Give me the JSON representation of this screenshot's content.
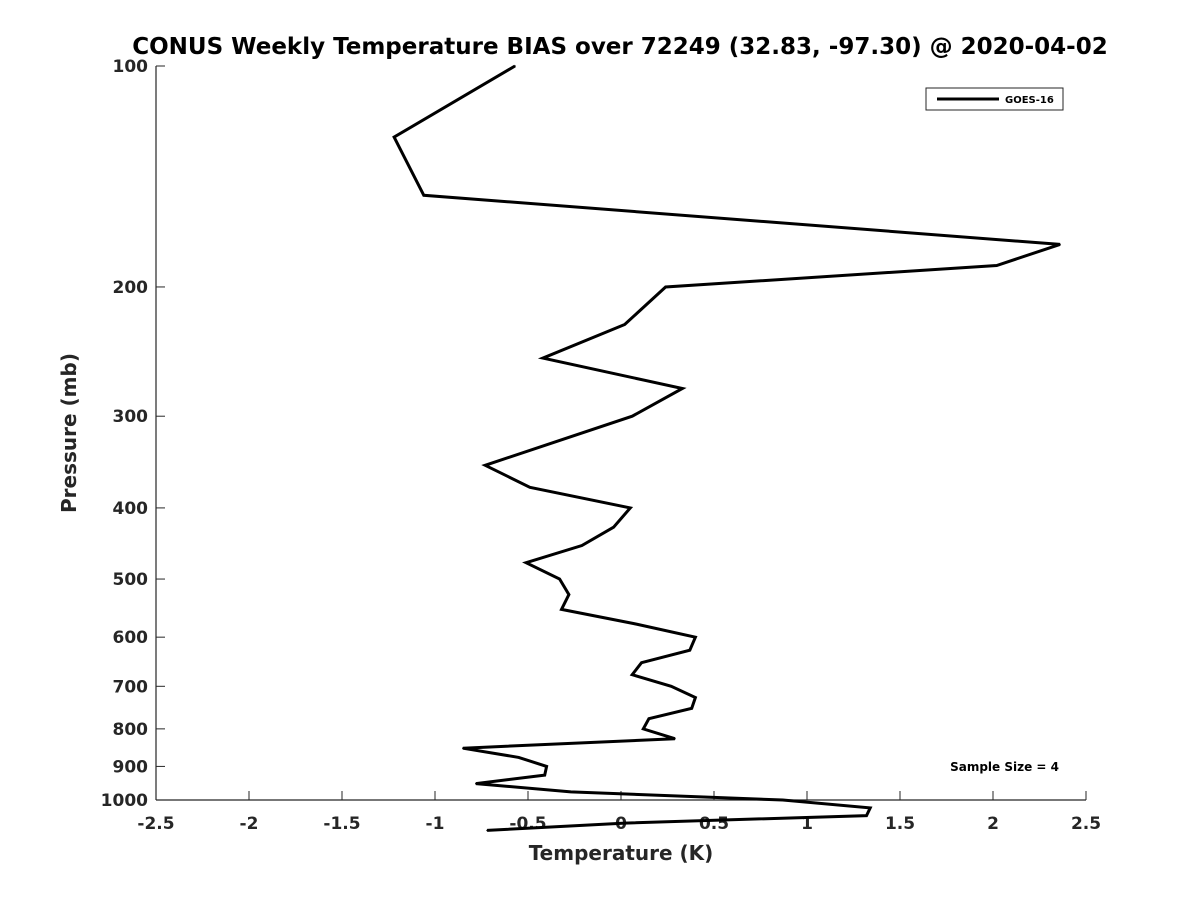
{
  "chart_data": {
    "type": "line",
    "title": "CONUS Weekly Temperature BIAS over 72249 (32.83, -97.30) @ 2020-04-02",
    "xlabel": "Temperature (K)",
    "ylabel": "Pressure (mb)",
    "xlim": [
      -2.5,
      2.5
    ],
    "ylim": [
      1000,
      100
    ],
    "yscale": "log",
    "x_ticks": [
      "-2.5",
      "-2",
      "-1.5",
      "-1",
      "-0.5",
      "0",
      "0.5",
      "1",
      "1.5",
      "2",
      "2.5"
    ],
    "x_tick_values": [
      -2.5,
      -2,
      -1.5,
      -1,
      -0.5,
      0,
      0.5,
      1,
      1.5,
      2,
      2.5
    ],
    "y_ticks": [
      "100",
      "200",
      "300",
      "400",
      "500",
      "600",
      "700",
      "800",
      "900",
      "1000"
    ],
    "y_tick_values": [
      100,
      200,
      300,
      400,
      500,
      600,
      700,
      800,
      900,
      1000
    ],
    "grid": false,
    "legend_position": "top-right",
    "series": [
      {
        "name": "GOES-16",
        "color": "#000000",
        "points": [
          {
            "x": -0.57,
            "p": 100
          },
          {
            "x": -1.22,
            "p": 125
          },
          {
            "x": -1.06,
            "p": 150
          },
          {
            "x": 2.36,
            "p": 175
          },
          {
            "x": 2.02,
            "p": 187
          },
          {
            "x": 0.24,
            "p": 200
          },
          {
            "x": 0.02,
            "p": 225
          },
          {
            "x": -0.42,
            "p": 250
          },
          {
            "x": 0.33,
            "p": 275
          },
          {
            "x": 0.06,
            "p": 300
          },
          {
            "x": -0.35,
            "p": 325
          },
          {
            "x": -0.73,
            "p": 350
          },
          {
            "x": -0.49,
            "p": 375
          },
          {
            "x": 0.05,
            "p": 400
          },
          {
            "x": -0.04,
            "p": 425
          },
          {
            "x": -0.21,
            "p": 450
          },
          {
            "x": -0.51,
            "p": 475
          },
          {
            "x": -0.33,
            "p": 500
          },
          {
            "x": -0.28,
            "p": 525
          },
          {
            "x": -0.32,
            "p": 550
          },
          {
            "x": 0.07,
            "p": 575
          },
          {
            "x": 0.4,
            "p": 600
          },
          {
            "x": 0.37,
            "p": 625
          },
          {
            "x": 0.11,
            "p": 650
          },
          {
            "x": 0.06,
            "p": 675
          },
          {
            "x": 0.27,
            "p": 700
          },
          {
            "x": 0.4,
            "p": 725
          },
          {
            "x": 0.38,
            "p": 750
          },
          {
            "x": 0.15,
            "p": 775
          },
          {
            "x": 0.12,
            "p": 800
          },
          {
            "x": 0.29,
            "p": 825
          },
          {
            "x": -0.85,
            "p": 850
          },
          {
            "x": -0.55,
            "p": 875
          },
          {
            "x": -0.4,
            "p": 900
          },
          {
            "x": -0.41,
            "p": 925
          },
          {
            "x": -0.78,
            "p": 950
          },
          {
            "x": -0.27,
            "p": 975
          },
          {
            "x": 0.87,
            "p": 1000
          },
          {
            "x": 1.34,
            "p": 1025
          },
          {
            "x": 1.32,
            "p": 1050
          },
          {
            "x": 0.02,
            "p": 1075
          },
          {
            "x": -0.72,
            "p": 1100
          }
        ]
      }
    ],
    "annotations": [
      {
        "text": "Sample Size = 4",
        "position": "bottom-right"
      }
    ]
  }
}
